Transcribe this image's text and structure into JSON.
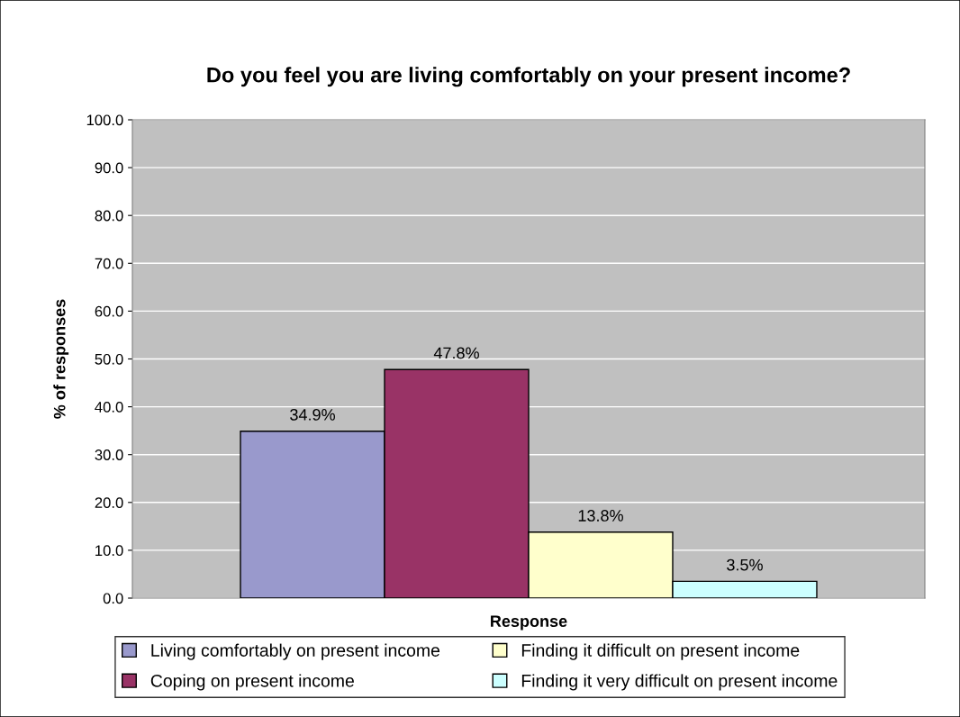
{
  "chart_data": {
    "type": "bar",
    "title": "Do you feel you are living comfortably on your present income?",
    "xlabel": "Response",
    "ylabel": "% of responses",
    "categories": [
      null
    ],
    "series": [
      {
        "name": "Living comfortably on present income",
        "color": "#9999cc",
        "values": [
          34.9
        ],
        "value_labels": [
          "34.9%"
        ]
      },
      {
        "name": "Coping on present income",
        "color": "#993366",
        "values": [
          47.8
        ],
        "value_labels": [
          "47.8%"
        ]
      },
      {
        "name": "Finding it difficult on present income",
        "color": "#ffffcc",
        "values": [
          13.8
        ],
        "value_labels": [
          "13.8%"
        ]
      },
      {
        "name": "Finding it very difficult on present income",
        "color": "#ccffff",
        "values": [
          3.5
        ],
        "value_labels": [
          "3.5%"
        ]
      }
    ],
    "ylim": [
      0,
      100
    ],
    "yticks": [
      {
        "value": 0,
        "label": "0.0"
      },
      {
        "value": 10,
        "label": "10.0"
      },
      {
        "value": 20,
        "label": "20.0"
      },
      {
        "value": 30,
        "label": "30.0"
      },
      {
        "value": 40,
        "label": "40.0"
      },
      {
        "value": 50,
        "label": "50.0"
      },
      {
        "value": 60,
        "label": "60.0"
      },
      {
        "value": 70,
        "label": "70.0"
      },
      {
        "value": 80,
        "label": "80.0"
      },
      {
        "value": 90,
        "label": "90.0"
      },
      {
        "value": 100,
        "label": "100.0"
      }
    ],
    "grid": "y",
    "legend": "bottom"
  }
}
